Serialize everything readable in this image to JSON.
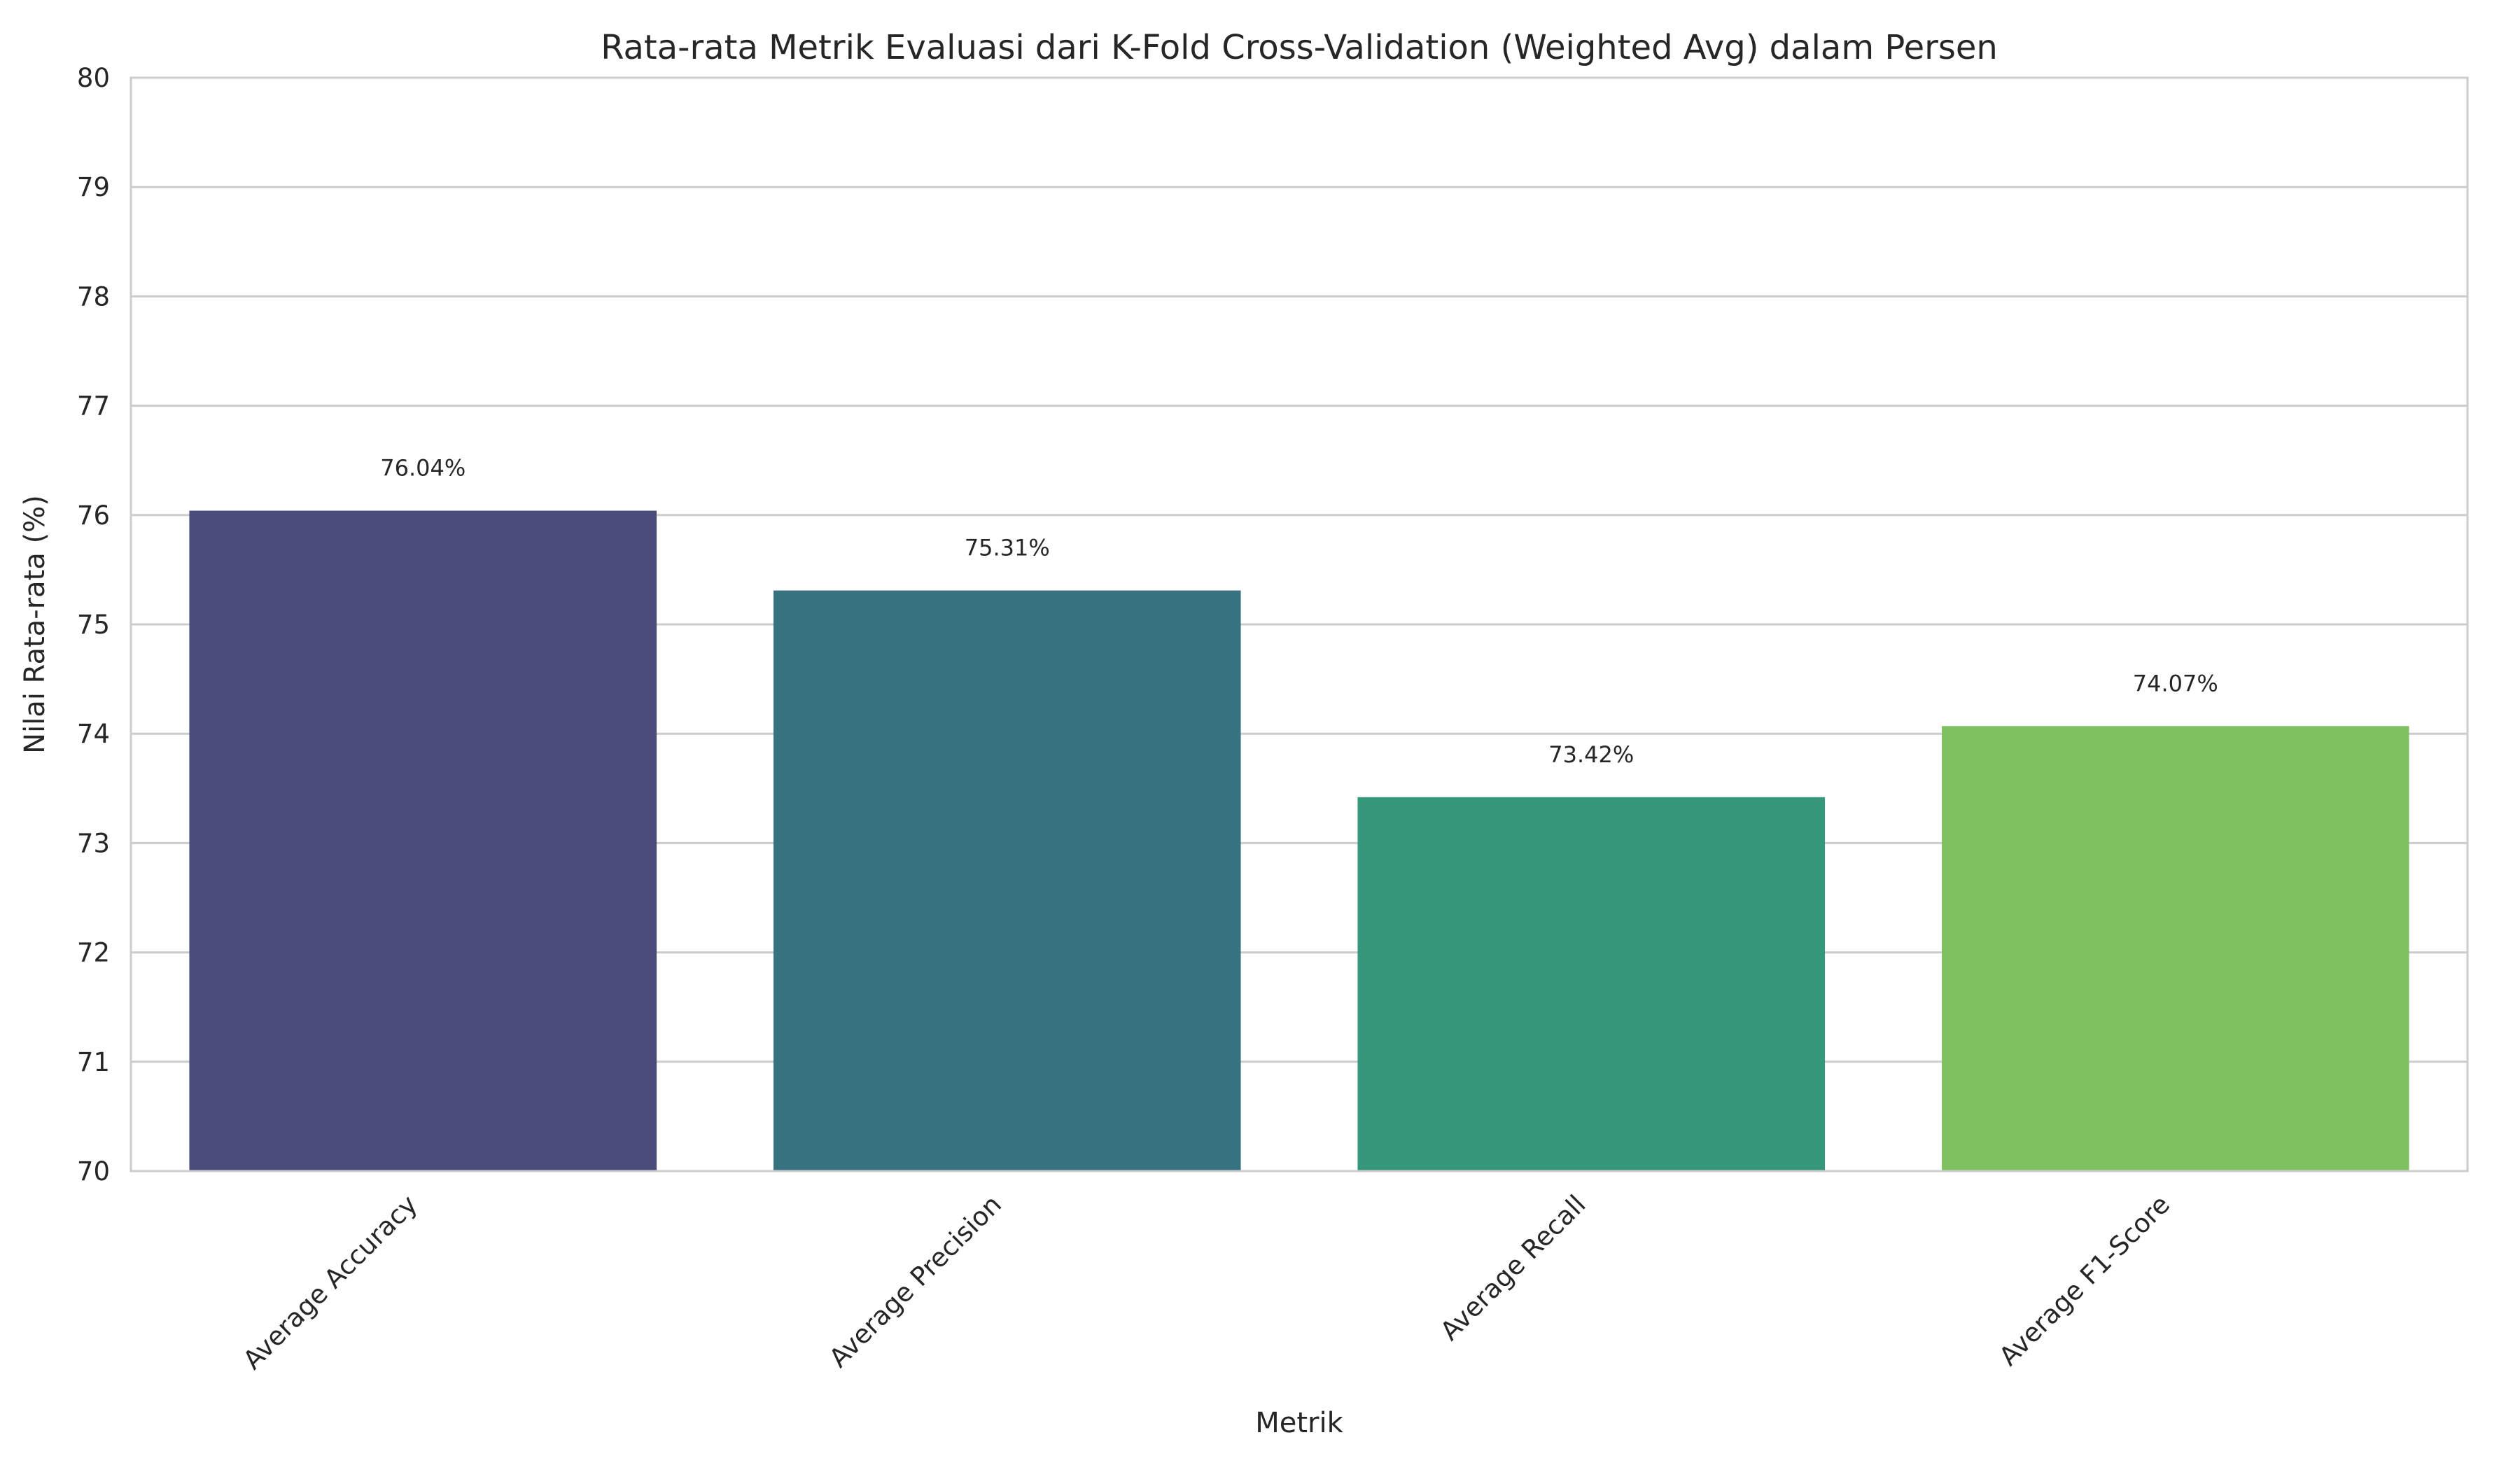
{
  "chart_data": {
    "type": "bar",
    "title": "Rata-rata Metrik Evaluasi dari K-Fold Cross-Validation (Weighted Avg) dalam Persen",
    "xlabel": "Metrik",
    "ylabel": "Nilai Rata-rata (%)",
    "ylim": [
      70,
      80
    ],
    "yticks": [
      70,
      71,
      72,
      73,
      74,
      75,
      76,
      77,
      78,
      79,
      80
    ],
    "grid": "horizontal",
    "categories": [
      "Average Accuracy",
      "Average Precision",
      "Average Recall",
      "Average F1-Score"
    ],
    "values": [
      76.04,
      75.31,
      73.42,
      74.07
    ],
    "data_labels": [
      "76.04%",
      "75.31%",
      "73.42%",
      "74.07%"
    ],
    "colors": [
      "#4a4d7c",
      "#377280",
      "#36987b",
      "#80c262"
    ]
  }
}
